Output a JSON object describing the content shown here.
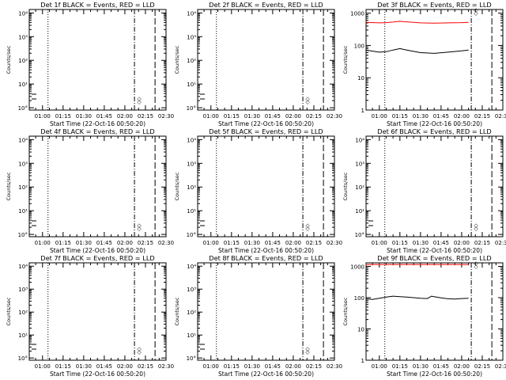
{
  "chart_data": [
    {
      "type": "line",
      "title": "Det 1f BLACK = Events, RED = LLD",
      "xlabel": "Start Time (22-Oct-16 00:50:20)",
      "ylabel": "Counts/sec",
      "yscale": "log",
      "y_tick_labels": [
        "10°",
        "10¹",
        "10²",
        "10³",
        "10⁴"
      ],
      "x_tick_labels": [
        "01:00",
        "01:15",
        "01:30",
        "01:45",
        "02:00",
        "02:15",
        "02:30"
      ],
      "series": [],
      "markers": {
        "dotted": "01:04",
        "dashdot": "02:07",
        "longdash": "02:22"
      },
      "corner_symbols": [
        "◇",
        "◇"
      ]
    },
    {
      "type": "line",
      "title": "Det 2f BLACK = Events, RED = LLD",
      "xlabel": "Start Time (22-Oct-16 00:50:20)",
      "ylabel": "Counts/sec",
      "yscale": "log",
      "y_tick_labels": [
        "10°",
        "10¹",
        "10²",
        "10³",
        "10⁴"
      ],
      "x_tick_labels": [
        "01:00",
        "01:15",
        "01:30",
        "01:45",
        "02:00",
        "02:15",
        "02:30"
      ],
      "series": [],
      "markers": {
        "dotted": "01:04",
        "dashdot": "02:07",
        "longdash": "02:22"
      },
      "corner_symbols": [
        "◇",
        "◇"
      ]
    },
    {
      "type": "line",
      "title": "Det 3f BLACK = Events, RED = LLD",
      "xlabel": "Start Time (22-Oct-16 00:50:20)",
      "ylabel": "Counts/sec",
      "yscale": "log",
      "y_tick_labels": [
        "1",
        "10",
        "100",
        "1000"
      ],
      "x_tick_labels": [
        "01:00",
        "01:15",
        "01:30",
        "01:45",
        "02:00",
        "02:15",
        "02:30"
      ],
      "series": [
        {
          "color": "#ff0000",
          "x": [
            "00:50",
            "01:00",
            "01:05",
            "01:10",
            "01:15",
            "01:20",
            "01:30",
            "01:40",
            "01:50",
            "02:00",
            "02:05"
          ],
          "values": [
            520,
            500,
            510,
            530,
            560,
            540,
            500,
            490,
            500,
            510,
            520
          ]
        },
        {
          "color": "#000000",
          "x": [
            "00:50",
            "01:00",
            "01:05",
            "01:10",
            "01:15",
            "01:20",
            "01:30",
            "01:40",
            "01:50",
            "02:00",
            "02:05"
          ],
          "values": [
            72,
            62,
            64,
            72,
            80,
            72,
            60,
            57,
            62,
            68,
            72
          ]
        }
      ],
      "markers": {
        "dotted": "01:04",
        "dashdot": "02:07",
        "longdash": "02:22"
      },
      "corner_symbols": [
        "◇",
        "◇"
      ]
    },
    {
      "type": "line",
      "title": "Det 4f BLACK = Events, RED = LLD",
      "xlabel": "Start Time (22-Oct-16 00:50:20)",
      "ylabel": "Counts/sec",
      "yscale": "log",
      "y_tick_labels": [
        "10°",
        "10¹",
        "10²",
        "10³",
        "10⁴"
      ],
      "x_tick_labels": [
        "01:00",
        "01:15",
        "01:30",
        "01:45",
        "02:00",
        "02:15",
        "02:30"
      ],
      "series": [],
      "markers": {
        "dotted": "01:04",
        "dashdot": "02:07",
        "longdash": "02:22"
      },
      "corner_symbols": [
        "◇",
        "◇"
      ]
    },
    {
      "type": "line",
      "title": "Det 5f BLACK = Events, RED = LLD",
      "xlabel": "Start Time (22-Oct-16 00:50:20)",
      "ylabel": "Counts/sec",
      "yscale": "log",
      "y_tick_labels": [
        "10°",
        "10¹",
        "10²",
        "10³",
        "10⁴"
      ],
      "x_tick_labels": [
        "01:00",
        "01:15",
        "01:30",
        "01:45",
        "02:00",
        "02:15",
        "02:30"
      ],
      "series": [],
      "markers": {
        "dotted": "01:04",
        "dashdot": "02:07",
        "longdash": "02:22"
      },
      "corner_symbols": [
        "◇",
        "◇"
      ]
    },
    {
      "type": "line",
      "title": "Det 6f BLACK = Events, RED = LLD",
      "xlabel": "Start Time (22-Oct-16 00:50:20)",
      "ylabel": "Counts/sec",
      "yscale": "log",
      "y_tick_labels": [
        "10°",
        "10¹",
        "10²",
        "10³",
        "10⁴"
      ],
      "x_tick_labels": [
        "01:00",
        "01:15",
        "01:30",
        "01:45",
        "02:00",
        "02:15",
        "02:30"
      ],
      "series": [],
      "markers": {
        "dotted": "01:04",
        "dashdot": "02:07",
        "longdash": "02:22"
      },
      "corner_symbols": [
        "◇",
        "◇"
      ]
    },
    {
      "type": "line",
      "title": "Det 7f BLACK = Events, RED = LLD",
      "xlabel": "Start Time (22-Oct-16 00:50:20)",
      "ylabel": "Counts/sec",
      "yscale": "log",
      "y_tick_labels": [
        "10°",
        "10¹",
        "10²",
        "10³",
        "10⁴"
      ],
      "x_tick_labels": [
        "01:00",
        "01:15",
        "01:30",
        "01:45",
        "02:00",
        "02:15",
        "02:30"
      ],
      "series": [],
      "markers": {
        "dotted": "01:04",
        "dashdot": "02:07",
        "longdash": "02:22"
      },
      "corner_symbols": [
        "◇",
        "◇"
      ]
    },
    {
      "type": "line",
      "title": "Det 8f BLACK = Events, RED = LLD",
      "xlabel": "Start Time (22-Oct-16 00:50:20)",
      "ylabel": "Counts/sec",
      "yscale": "log",
      "y_tick_labels": [
        "10°",
        "10¹",
        "10²",
        "10³",
        "10⁴"
      ],
      "x_tick_labels": [
        "01:00",
        "01:15",
        "01:30",
        "01:45",
        "02:00",
        "02:15",
        "02:30"
      ],
      "series": [],
      "markers": {
        "dotted": "01:04",
        "dashdot": "02:07",
        "longdash": "02:22"
      },
      "corner_symbols": [
        "◇",
        "◇"
      ]
    },
    {
      "type": "line",
      "title": "Det 9f BLACK = Events, RED = LLD",
      "xlabel": "Start Time (22-Oct-16 00:50:20)",
      "ylabel": "Counts/sec",
      "yscale": "log",
      "y_tick_labels": [
        "1",
        "10",
        "100",
        "1000"
      ],
      "x_tick_labels": [
        "01:00",
        "01:15",
        "01:30",
        "01:45",
        "02:00",
        "02:15",
        "02:30"
      ],
      "series": [
        {
          "color": "#ff0000",
          "x": [
            "00:50",
            "01:00",
            "01:15",
            "01:30",
            "01:45",
            "02:00",
            "02:05"
          ],
          "values": [
            1150,
            1150,
            1150,
            1150,
            1150,
            1150,
            1150
          ]
        },
        {
          "color": "#000000",
          "x": [
            "00:50",
            "00:55",
            "01:00",
            "01:05",
            "01:10",
            "01:15",
            "01:20",
            "01:25",
            "01:30",
            "01:35",
            "01:38",
            "01:40",
            "01:45",
            "01:50",
            "01:55",
            "02:00",
            "02:05"
          ],
          "values": [
            92,
            88,
            96,
            105,
            112,
            108,
            104,
            100,
            96,
            94,
            112,
            108,
            98,
            92,
            90,
            94,
            96
          ]
        }
      ],
      "markers": {
        "dotted": "01:04",
        "dashdot": "02:07",
        "longdash": "02:22"
      },
      "corner_symbols": [
        "◇",
        "◇"
      ]
    }
  ]
}
